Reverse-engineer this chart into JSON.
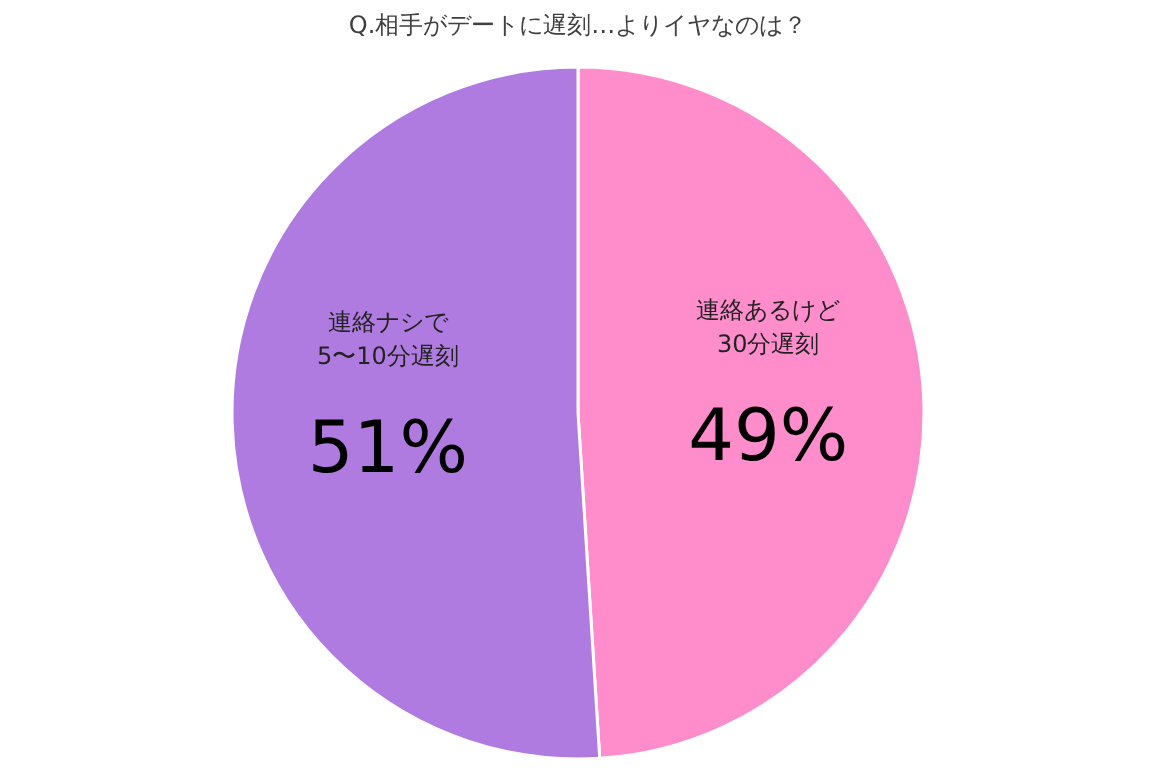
{
  "chart_data": {
    "type": "pie",
    "title": "Q.相手がデートに遅刻…よりイヤなのは？",
    "categories": [
      "連絡あるけど\n30分遅刻",
      "連絡ナシで\n5〜10分遅刻"
    ],
    "values": [
      49,
      51
    ],
    "colors": [
      "#ff8ccb",
      "#b07be0"
    ],
    "value_labels": [
      "49%",
      "51%"
    ]
  }
}
